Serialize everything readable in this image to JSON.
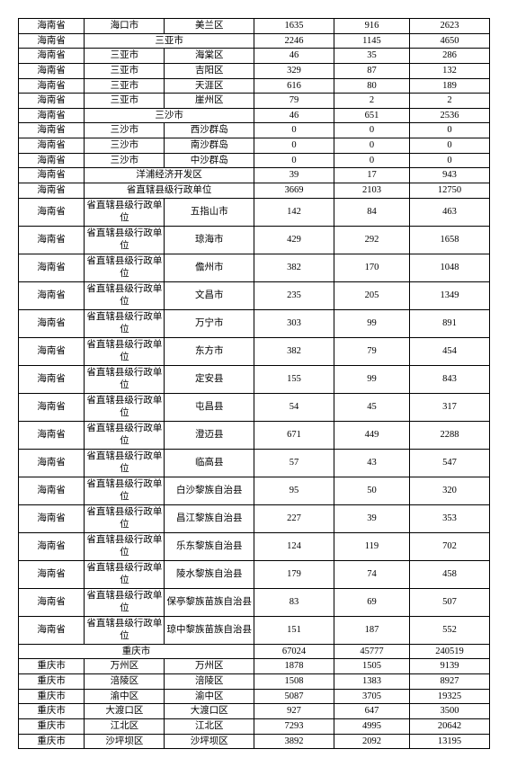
{
  "table": {
    "background_color": "#ffffff",
    "border_color": "#000000",
    "rows": [
      {
        "cells": [
          {
            "v": "海南省"
          },
          {
            "v": "海口市"
          },
          {
            "v": "美兰区"
          },
          {
            "v": "1635"
          },
          {
            "v": "916"
          },
          {
            "v": "2623"
          }
        ]
      },
      {
        "cells": [
          {
            "v": "海南省"
          },
          {
            "v": "三亚市",
            "span": 2
          },
          {
            "v": "2246"
          },
          {
            "v": "1145"
          },
          {
            "v": "4650"
          }
        ]
      },
      {
        "cells": [
          {
            "v": "海南省"
          },
          {
            "v": "三亚市"
          },
          {
            "v": "海棠区"
          },
          {
            "v": "46"
          },
          {
            "v": "35"
          },
          {
            "v": "286"
          }
        ]
      },
      {
        "cells": [
          {
            "v": "海南省"
          },
          {
            "v": "三亚市"
          },
          {
            "v": "吉阳区"
          },
          {
            "v": "329"
          },
          {
            "v": "87"
          },
          {
            "v": "132"
          }
        ]
      },
      {
        "cells": [
          {
            "v": "海南省"
          },
          {
            "v": "三亚市"
          },
          {
            "v": "天涯区"
          },
          {
            "v": "616"
          },
          {
            "v": "80"
          },
          {
            "v": "189"
          }
        ]
      },
      {
        "cells": [
          {
            "v": "海南省"
          },
          {
            "v": "三亚市"
          },
          {
            "v": "崖州区"
          },
          {
            "v": "79"
          },
          {
            "v": "2"
          },
          {
            "v": "2"
          }
        ]
      },
      {
        "cells": [
          {
            "v": "海南省"
          },
          {
            "v": "三沙市",
            "span": 2
          },
          {
            "v": "46"
          },
          {
            "v": "651"
          },
          {
            "v": "2536"
          }
        ]
      },
      {
        "cells": [
          {
            "v": "海南省"
          },
          {
            "v": "三沙市"
          },
          {
            "v": "西沙群岛"
          },
          {
            "v": "0"
          },
          {
            "v": "0"
          },
          {
            "v": "0"
          }
        ]
      },
      {
        "cells": [
          {
            "v": "海南省"
          },
          {
            "v": "三沙市"
          },
          {
            "v": "南沙群岛"
          },
          {
            "v": "0"
          },
          {
            "v": "0"
          },
          {
            "v": "0"
          }
        ]
      },
      {
        "cells": [
          {
            "v": "海南省"
          },
          {
            "v": "三沙市"
          },
          {
            "v": "中沙群岛"
          },
          {
            "v": "0"
          },
          {
            "v": "0"
          },
          {
            "v": "0"
          }
        ]
      },
      {
        "cells": [
          {
            "v": "海南省"
          },
          {
            "v": "洋浦经济开发区",
            "span": 2
          },
          {
            "v": "39"
          },
          {
            "v": "17"
          },
          {
            "v": "943"
          }
        ]
      },
      {
        "cells": [
          {
            "v": "海南省"
          },
          {
            "v": "省直辖县级行政单位",
            "span": 2
          },
          {
            "v": "3669"
          },
          {
            "v": "2103"
          },
          {
            "v": "12750"
          }
        ]
      },
      {
        "tall": true,
        "cells": [
          {
            "v": "海南省"
          },
          {
            "v": "省直辖县级行政单位"
          },
          {
            "v": "五指山市"
          },
          {
            "v": "142"
          },
          {
            "v": "84"
          },
          {
            "v": "463"
          }
        ]
      },
      {
        "tall": true,
        "cells": [
          {
            "v": "海南省"
          },
          {
            "v": "省直辖县级行政单位"
          },
          {
            "v": "琼海市"
          },
          {
            "v": "429"
          },
          {
            "v": "292"
          },
          {
            "v": "1658"
          }
        ]
      },
      {
        "tall": true,
        "cells": [
          {
            "v": "海南省"
          },
          {
            "v": "省直辖县级行政单位"
          },
          {
            "v": "儋州市"
          },
          {
            "v": "382"
          },
          {
            "v": "170"
          },
          {
            "v": "1048"
          }
        ]
      },
      {
        "tall": true,
        "cells": [
          {
            "v": "海南省"
          },
          {
            "v": "省直辖县级行政单位"
          },
          {
            "v": "文昌市"
          },
          {
            "v": "235"
          },
          {
            "v": "205"
          },
          {
            "v": "1349"
          }
        ]
      },
      {
        "tall": true,
        "cells": [
          {
            "v": "海南省"
          },
          {
            "v": "省直辖县级行政单位"
          },
          {
            "v": "万宁市"
          },
          {
            "v": "303"
          },
          {
            "v": "99"
          },
          {
            "v": "891"
          }
        ]
      },
      {
        "tall": true,
        "cells": [
          {
            "v": "海南省"
          },
          {
            "v": "省直辖县级行政单位"
          },
          {
            "v": "东方市"
          },
          {
            "v": "382"
          },
          {
            "v": "79"
          },
          {
            "v": "454"
          }
        ]
      },
      {
        "tall": true,
        "cells": [
          {
            "v": "海南省"
          },
          {
            "v": "省直辖县级行政单位"
          },
          {
            "v": "定安县"
          },
          {
            "v": "155"
          },
          {
            "v": "99"
          },
          {
            "v": "843"
          }
        ]
      },
      {
        "tall": true,
        "cells": [
          {
            "v": "海南省"
          },
          {
            "v": "省直辖县级行政单位"
          },
          {
            "v": "屯昌县"
          },
          {
            "v": "54"
          },
          {
            "v": "45"
          },
          {
            "v": "317"
          }
        ]
      },
      {
        "tall": true,
        "cells": [
          {
            "v": "海南省"
          },
          {
            "v": "省直辖县级行政单位"
          },
          {
            "v": "澄迈县"
          },
          {
            "v": "671"
          },
          {
            "v": "449"
          },
          {
            "v": "2288"
          }
        ]
      },
      {
        "tall": true,
        "cells": [
          {
            "v": "海南省"
          },
          {
            "v": "省直辖县级行政单位"
          },
          {
            "v": "临高县"
          },
          {
            "v": "57"
          },
          {
            "v": "43"
          },
          {
            "v": "547"
          }
        ]
      },
      {
        "tall": true,
        "cells": [
          {
            "v": "海南省"
          },
          {
            "v": "省直辖县级行政单位"
          },
          {
            "v": "白沙黎族自治县"
          },
          {
            "v": "95"
          },
          {
            "v": "50"
          },
          {
            "v": "320"
          }
        ]
      },
      {
        "tall": true,
        "cells": [
          {
            "v": "海南省"
          },
          {
            "v": "省直辖县级行政单位"
          },
          {
            "v": "昌江黎族自治县"
          },
          {
            "v": "227"
          },
          {
            "v": "39"
          },
          {
            "v": "353"
          }
        ]
      },
      {
        "tall": true,
        "cells": [
          {
            "v": "海南省"
          },
          {
            "v": "省直辖县级行政单位"
          },
          {
            "v": "乐东黎族自治县"
          },
          {
            "v": "124"
          },
          {
            "v": "119"
          },
          {
            "v": "702"
          }
        ]
      },
      {
        "tall": true,
        "cells": [
          {
            "v": "海南省"
          },
          {
            "v": "省直辖县级行政单位"
          },
          {
            "v": "陵水黎族自治县"
          },
          {
            "v": "179"
          },
          {
            "v": "74"
          },
          {
            "v": "458"
          }
        ]
      },
      {
        "tall": true,
        "cells": [
          {
            "v": "海南省"
          },
          {
            "v": "省直辖县级行政单位"
          },
          {
            "v": "保亭黎族苗族自治县"
          },
          {
            "v": "83"
          },
          {
            "v": "69"
          },
          {
            "v": "507"
          }
        ]
      },
      {
        "tall": true,
        "cells": [
          {
            "v": "海南省"
          },
          {
            "v": "省直辖县级行政单位"
          },
          {
            "v": "琼中黎族苗族自治县"
          },
          {
            "v": "151"
          },
          {
            "v": "187"
          },
          {
            "v": "552"
          }
        ]
      },
      {
        "cells": [
          {
            "v": "重庆市",
            "span": 3
          },
          {
            "v": "67024"
          },
          {
            "v": "45777"
          },
          {
            "v": "240519"
          }
        ]
      },
      {
        "cells": [
          {
            "v": "重庆市"
          },
          {
            "v": "万州区"
          },
          {
            "v": "万州区"
          },
          {
            "v": "1878"
          },
          {
            "v": "1505"
          },
          {
            "v": "9139"
          }
        ]
      },
      {
        "cells": [
          {
            "v": "重庆市"
          },
          {
            "v": "涪陵区"
          },
          {
            "v": "涪陵区"
          },
          {
            "v": "1508"
          },
          {
            "v": "1383"
          },
          {
            "v": "8927"
          }
        ]
      },
      {
        "cells": [
          {
            "v": "重庆市"
          },
          {
            "v": "渝中区"
          },
          {
            "v": "渝中区"
          },
          {
            "v": "5087"
          },
          {
            "v": "3705"
          },
          {
            "v": "19325"
          }
        ]
      },
      {
        "cells": [
          {
            "v": "重庆市"
          },
          {
            "v": "大渡口区"
          },
          {
            "v": "大渡口区"
          },
          {
            "v": "927"
          },
          {
            "v": "647"
          },
          {
            "v": "3500"
          }
        ]
      },
      {
        "cells": [
          {
            "v": "重庆市"
          },
          {
            "v": "江北区"
          },
          {
            "v": "江北区"
          },
          {
            "v": "7293"
          },
          {
            "v": "4995"
          },
          {
            "v": "20642"
          }
        ]
      },
      {
        "cells": [
          {
            "v": "重庆市"
          },
          {
            "v": "沙坪坝区"
          },
          {
            "v": "沙坪坝区"
          },
          {
            "v": "3892"
          },
          {
            "v": "2092"
          },
          {
            "v": "13195"
          }
        ]
      }
    ]
  }
}
